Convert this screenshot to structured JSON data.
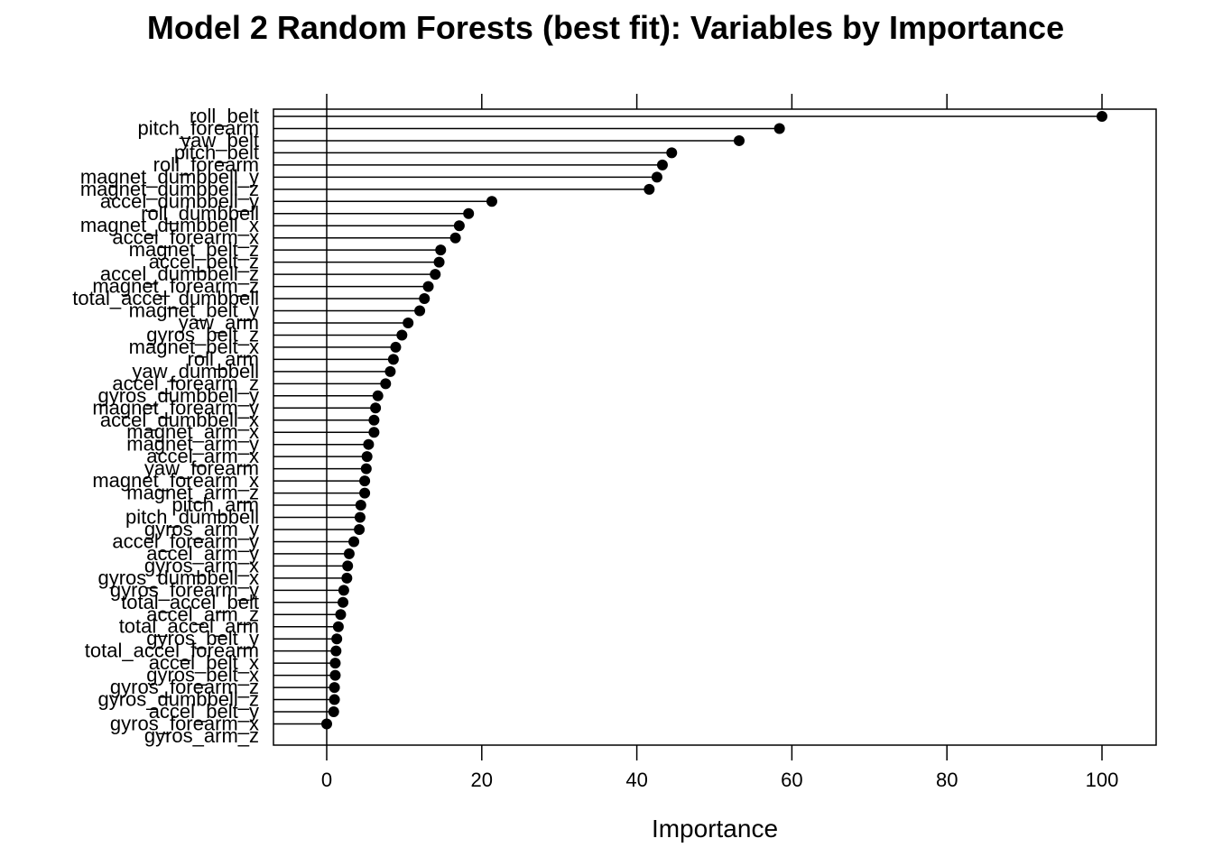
{
  "chart_data": {
    "type": "dotplot",
    "title": "Model 2 Random Forests (best fit): Variables by Importance",
    "xlabel": "Importance",
    "ylabel": "",
    "xlim": [
      -7,
      107
    ],
    "xticks": [
      0,
      20,
      40,
      60,
      80,
      100
    ],
    "grid": false,
    "variables": [
      {
        "name": "roll_belt",
        "value": 100
      },
      {
        "name": "pitch_forearm",
        "value": 58.4
      },
      {
        "name": "yaw_belt",
        "value": 53.2
      },
      {
        "name": "pitch_belt",
        "value": 44.5
      },
      {
        "name": "roll_forearm",
        "value": 43.3
      },
      {
        "name": "magnet_dumbbell_y",
        "value": 42.6
      },
      {
        "name": "magnet_dumbbell_z",
        "value": 41.6
      },
      {
        "name": "accel_dumbbell_y",
        "value": 21.3
      },
      {
        "name": "roll_dumbbell",
        "value": 18.3
      },
      {
        "name": "magnet_dumbbell_x",
        "value": 17.1
      },
      {
        "name": "accel_forearm_x",
        "value": 16.6
      },
      {
        "name": "magnet_belt_z",
        "value": 14.7
      },
      {
        "name": "accel_belt_z",
        "value": 14.5
      },
      {
        "name": "accel_dumbbell_z",
        "value": 14.0
      },
      {
        "name": "magnet_forearm_z",
        "value": 13.1
      },
      {
        "name": "total_accel_dumbbell",
        "value": 12.6
      },
      {
        "name": "magnet_belt_y",
        "value": 12.0
      },
      {
        "name": "yaw_arm",
        "value": 10.5
      },
      {
        "name": "gyros_belt_z",
        "value": 9.7
      },
      {
        "name": "magnet_belt_x",
        "value": 8.9
      },
      {
        "name": "roll_arm",
        "value": 8.6
      },
      {
        "name": "yaw_dumbbell",
        "value": 8.2
      },
      {
        "name": "accel_forearm_z",
        "value": 7.6
      },
      {
        "name": "gyros_dumbbell_y",
        "value": 6.6
      },
      {
        "name": "magnet_forearm_y",
        "value": 6.3
      },
      {
        "name": "accel_dumbbell_x",
        "value": 6.1
      },
      {
        "name": "magnet_arm_x",
        "value": 6.1
      },
      {
        "name": "magnet_arm_y",
        "value": 5.4
      },
      {
        "name": "accel_arm_x",
        "value": 5.2
      },
      {
        "name": "yaw_forearm",
        "value": 5.1
      },
      {
        "name": "magnet_forearm_x",
        "value": 4.9
      },
      {
        "name": "magnet_arm_z",
        "value": 4.9
      },
      {
        "name": "pitch_arm",
        "value": 4.4
      },
      {
        "name": "pitch_dumbbell",
        "value": 4.3
      },
      {
        "name": "gyros_arm_y",
        "value": 4.2
      },
      {
        "name": "accel_forearm_y",
        "value": 3.5
      },
      {
        "name": "accel_arm_y",
        "value": 2.9
      },
      {
        "name": "gyros_arm_x",
        "value": 2.7
      },
      {
        "name": "gyros_dumbbell_x",
        "value": 2.6
      },
      {
        "name": "gyros_forearm_y",
        "value": 2.2
      },
      {
        "name": "total_accel_belt",
        "value": 2.1
      },
      {
        "name": "accel_arm_z",
        "value": 1.8
      },
      {
        "name": "total_accel_arm",
        "value": 1.5
      },
      {
        "name": "gyros_belt_y",
        "value": 1.3
      },
      {
        "name": "total_accel_forearm",
        "value": 1.2
      },
      {
        "name": "accel_belt_x",
        "value": 1.1
      },
      {
        "name": "gyros_belt_x",
        "value": 1.1
      },
      {
        "name": "gyros_forearm_z",
        "value": 1.0
      },
      {
        "name": "gyros_dumbbell_z",
        "value": 1.0
      },
      {
        "name": "accel_belt_y",
        "value": 0.9
      },
      {
        "name": "gyros_forearm_x",
        "value": 0.0
      },
      {
        "name": "gyros_arm_z",
        "value": null
      }
    ]
  }
}
